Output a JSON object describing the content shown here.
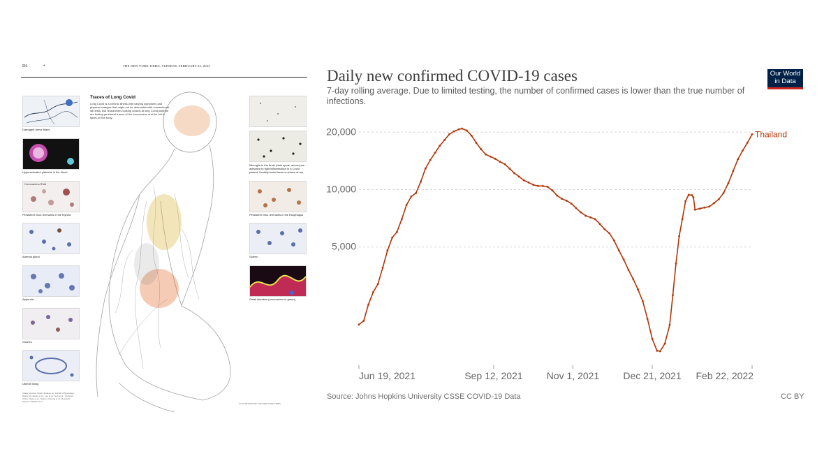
{
  "newspaper": {
    "page_number": "D6",
    "masthead": "THE NEW YORK TIMES, TUESDAY, FEBRUARY 22, 2022",
    "title": "Traces of Long Covid",
    "intro": "Long Covid is a chronic illness with varying symptoms and physical changes that might not be detectable with conventional lab tests. But researchers looking closely at long Covid patients are finding persistent traces of the coronavirus and the toll it takes on the body.",
    "left_captions": [
      "Damaged nerve fibers",
      "Hyperactivated platelets in the blood",
      "Persistent virus remnants in the thyroid",
      "Adrenal gland",
      "Appendix",
      "Ovaries",
      "Uterine lining"
    ],
    "thumb_label": "Coronavirus RNA",
    "right_captions": [
      "Microglia in the brain (dark spots, above) are activated to fight inflammation in a Covid patient. Healthy brain tissue is shown at top.",
      "Persistent virus remnants in the Esophagus",
      "Spleen",
      "Small intestine (coronavirus in green)"
    ],
    "image_sources": "Image sources: Peter Novak et al., Annals of Neurology; Diana Fernandes et al.; Lee et al.; Goh et al., Virchows Archiv; Stein et al., Nature; Cheung et al.; Research Square; Gaebler et al.",
    "credits": "ILLUSTRATION BY THE NEW YORK TIMES"
  },
  "chart": {
    "title": "Daily new confirmed COVID-19 cases",
    "subtitle": "7-day rolling average. Due to limited testing, the number of confirmed cases is lower than the true number of infections.",
    "logo_line1": "Our World",
    "logo_line2": "in Data",
    "source": "Source: Johns Hopkins University CSSE COVID-19 Data",
    "license": "CC BY",
    "series_label": "Thailand",
    "line_color": "#b13507"
  },
  "chart_data": {
    "type": "line",
    "title": "Daily new confirmed COVID-19 cases",
    "subtitle": "7-day rolling average. Due to limited testing, the number of confirmed cases is lower than the true number of infections.",
    "y_scale": "log",
    "ylim": [
      1200,
      22000
    ],
    "y_ticks": [
      5000,
      10000,
      20000
    ],
    "y_tick_labels": [
      "5,000",
      "10,000",
      "20,000"
    ],
    "x_range": [
      "2021-06-19",
      "2022-02-22"
    ],
    "x_ticks": [
      "2021-06-19",
      "2021-09-12",
      "2021-11-01",
      "2021-12-21",
      "2022-02-22"
    ],
    "x_tick_labels": [
      "Jun 19, 2021",
      "Sep 12, 2021",
      "Nov 1, 2021",
      "Dec 21, 2021",
      "Feb 22, 2022"
    ],
    "grid": "horizontal dashed",
    "series": [
      {
        "name": "Thailand",
        "points": [
          [
            "2021-06-19",
            1960
          ],
          [
            "2021-06-22",
            2050
          ],
          [
            "2021-06-25",
            2500
          ],
          [
            "2021-06-28",
            2900
          ],
          [
            "2021-07-01",
            3200
          ],
          [
            "2021-07-04",
            3900
          ],
          [
            "2021-07-07",
            4800
          ],
          [
            "2021-07-10",
            5600
          ],
          [
            "2021-07-13",
            6000
          ],
          [
            "2021-07-16",
            7000
          ],
          [
            "2021-07-19",
            8300
          ],
          [
            "2021-07-22",
            9200
          ],
          [
            "2021-07-25",
            9600
          ],
          [
            "2021-07-28",
            11000
          ],
          [
            "2021-07-31",
            12900
          ],
          [
            "2021-08-03",
            14300
          ],
          [
            "2021-08-06",
            15600
          ],
          [
            "2021-08-09",
            17000
          ],
          [
            "2021-08-12",
            18200
          ],
          [
            "2021-08-15",
            19500
          ],
          [
            "2021-08-18",
            20200
          ],
          [
            "2021-08-21",
            20700
          ],
          [
            "2021-08-23",
            20900
          ],
          [
            "2021-08-26",
            20400
          ],
          [
            "2021-08-29",
            19200
          ],
          [
            "2021-09-01",
            17600
          ],
          [
            "2021-09-04",
            16300
          ],
          [
            "2021-09-07",
            15300
          ],
          [
            "2021-09-10",
            14900
          ],
          [
            "2021-09-13",
            14500
          ],
          [
            "2021-09-16",
            14000
          ],
          [
            "2021-09-19",
            13600
          ],
          [
            "2021-09-22",
            12900
          ],
          [
            "2021-09-25",
            12200
          ],
          [
            "2021-09-28",
            11700
          ],
          [
            "2021-10-01",
            11200
          ],
          [
            "2021-10-04",
            10900
          ],
          [
            "2021-10-07",
            10600
          ],
          [
            "2021-10-10",
            10450
          ],
          [
            "2021-10-13",
            10450
          ],
          [
            "2021-10-16",
            10350
          ],
          [
            "2021-10-19",
            9900
          ],
          [
            "2021-10-22",
            9300
          ],
          [
            "2021-10-25",
            8950
          ],
          [
            "2021-10-28",
            8750
          ],
          [
            "2021-10-31",
            8450
          ],
          [
            "2021-11-03",
            8000
          ],
          [
            "2021-11-06",
            7600
          ],
          [
            "2021-11-09",
            7300
          ],
          [
            "2021-11-12",
            7150
          ],
          [
            "2021-11-15",
            7000
          ],
          [
            "2021-11-18",
            6600
          ],
          [
            "2021-11-21",
            6200
          ],
          [
            "2021-11-24",
            5900
          ],
          [
            "2021-11-27",
            5400
          ],
          [
            "2021-11-30",
            4800
          ],
          [
            "2021-12-03",
            4300
          ],
          [
            "2021-12-06",
            3800
          ],
          [
            "2021-12-09",
            3400
          ],
          [
            "2021-12-12",
            3000
          ],
          [
            "2021-12-15",
            2600
          ],
          [
            "2021-12-18",
            2100
          ],
          [
            "2021-12-21",
            1650
          ],
          [
            "2021-12-24",
            1430
          ],
          [
            "2021-12-26",
            1420
          ],
          [
            "2021-12-29",
            1560
          ],
          [
            "2022-01-01",
            1950
          ],
          [
            "2022-01-03",
            2800
          ],
          [
            "2022-01-05",
            4100
          ],
          [
            "2022-01-07",
            5700
          ],
          [
            "2022-01-09",
            7000
          ],
          [
            "2022-01-11",
            8700
          ],
          [
            "2022-01-13",
            9400
          ],
          [
            "2022-01-15",
            9350
          ],
          [
            "2022-01-16",
            9100
          ],
          [
            "2022-01-17",
            7850
          ],
          [
            "2022-01-20",
            7950
          ],
          [
            "2022-01-23",
            8050
          ],
          [
            "2022-01-26",
            8150
          ],
          [
            "2022-01-29",
            8500
          ],
          [
            "2022-02-01",
            8900
          ],
          [
            "2022-02-04",
            9600
          ],
          [
            "2022-02-07",
            10800
          ],
          [
            "2022-02-10",
            12500
          ],
          [
            "2022-02-13",
            14400
          ],
          [
            "2022-02-16",
            16000
          ],
          [
            "2022-02-19",
            17600
          ],
          [
            "2022-02-22",
            19500
          ]
        ]
      }
    ]
  }
}
